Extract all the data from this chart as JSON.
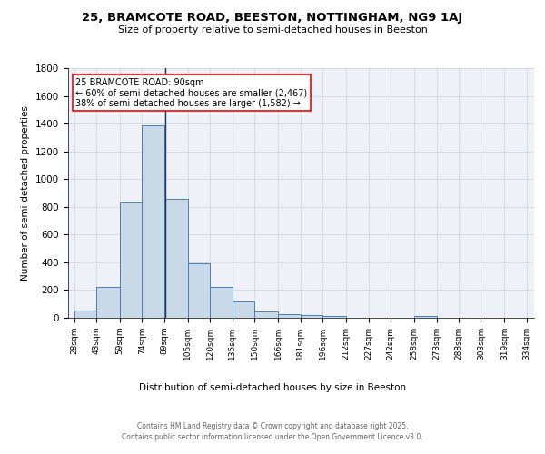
{
  "title1": "25, BRAMCOTE ROAD, BEESTON, NOTTINGHAM, NG9 1AJ",
  "title2": "Size of property relative to semi-detached houses in Beeston",
  "xlabel": "Distribution of semi-detached houses by size in Beeston",
  "ylabel": "Number of semi-detached properties",
  "annotation_title": "25 BRAMCOTE ROAD: 90sqm",
  "annotation_line1": "← 60% of semi-detached houses are smaller (2,467)",
  "annotation_line2": "38% of semi-detached houses are larger (1,582) →",
  "footer_line1": "Contains HM Land Registry data © Crown copyright and database right 2025.",
  "footer_line2": "Contains public sector information licensed under the Open Government Licence v3.0.",
  "property_size": 90,
  "bar_edges": [
    28,
    43,
    59,
    74,
    89,
    105,
    120,
    135,
    150,
    166,
    181,
    196,
    212,
    227,
    242,
    258,
    273,
    288,
    303,
    319,
    334
  ],
  "bar_values": [
    50,
    225,
    830,
    1390,
    860,
    395,
    225,
    120,
    45,
    25,
    20,
    10,
    0,
    0,
    0,
    15,
    0,
    0,
    0,
    0
  ],
  "bar_color": "#c9d9e8",
  "bar_edge_color": "#4a7eb5",
  "marker_line_color": "#1a3a5c",
  "grid_color": "#d0d8e8",
  "background_color": "#eef2f8",
  "annotation_box_color": "white",
  "annotation_box_edge": "red",
  "ylim": [
    0,
    1800
  ],
  "yticks": [
    0,
    200,
    400,
    600,
    800,
    1000,
    1200,
    1400,
    1600,
    1800
  ],
  "title1_fontsize": 9.5,
  "title2_fontsize": 8.0,
  "ylabel_fontsize": 7.5,
  "xlabel_fontsize": 7.5,
  "ytick_fontsize": 7.5,
  "xtick_fontsize": 6.5,
  "footer_fontsize": 5.5,
  "annot_fontsize": 7.0
}
